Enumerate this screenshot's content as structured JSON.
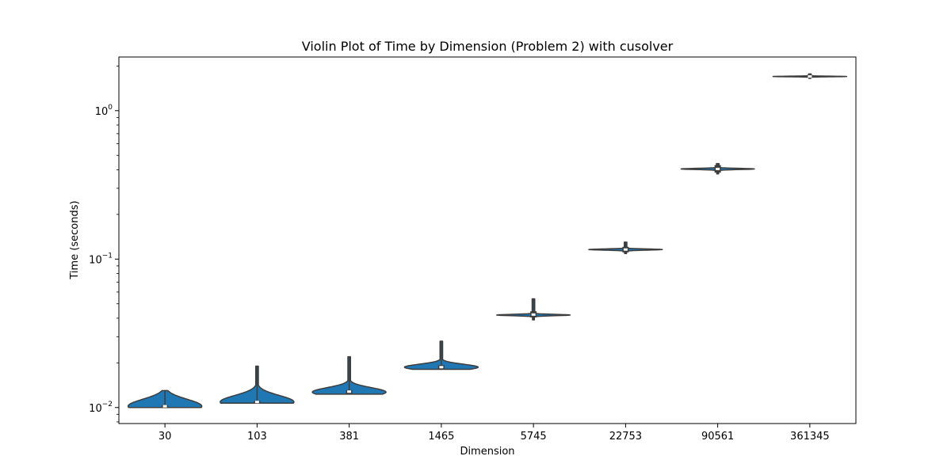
{
  "chart_data": {
    "type": "violin",
    "title": "Violin Plot of Time by Dimension (Problem 2) with cusolver",
    "xlabel": "Dimension",
    "ylabel": "Time (seconds)",
    "yscale": "log",
    "ylim": [
      0.0078,
      2.3
    ],
    "y_ticks": [
      {
        "value": 0.01,
        "base": "10",
        "exp": "−2"
      },
      {
        "value": 0.1,
        "base": "10",
        "exp": "−1"
      },
      {
        "value": 1,
        "base": "10",
        "exp": "0"
      }
    ],
    "categories": [
      "30",
      "103",
      "381",
      "1465",
      "5745",
      "22753",
      "90561",
      "361345"
    ],
    "violins": [
      {
        "median": 0.0102,
        "q1": 0.01,
        "q3": 0.0104,
        "min": 0.01,
        "max": 0.013,
        "mode": 0.0102,
        "spread": 0.047
      },
      {
        "median": 0.0109,
        "q1": 0.0107,
        "q3": 0.0111,
        "min": 0.0107,
        "max": 0.019,
        "mode": 0.0109,
        "spread": 0.044
      },
      {
        "median": 0.0128,
        "q1": 0.0124,
        "q3": 0.0131,
        "min": 0.0123,
        "max": 0.022,
        "mode": 0.0127,
        "spread": 0.03
      },
      {
        "median": 0.0187,
        "q1": 0.0182,
        "q3": 0.0193,
        "min": 0.0181,
        "max": 0.028,
        "mode": 0.0187,
        "spread": 0.02
      },
      {
        "median": 0.0423,
        "q1": 0.0405,
        "q3": 0.0445,
        "min": 0.039,
        "max": 0.054,
        "mode": 0.042,
        "spread": 0.0045
      },
      {
        "median": 0.116,
        "q1": 0.111,
        "q3": 0.121,
        "min": 0.109,
        "max": 0.13,
        "mode": 0.116,
        "spread": 0.004
      },
      {
        "median": 0.405,
        "q1": 0.383,
        "q3": 0.43,
        "min": 0.375,
        "max": 0.44,
        "mode": 0.405,
        "spread": 0.004
      },
      {
        "median": 1.7,
        "q1": 1.67,
        "q3": 1.74,
        "min": 1.65,
        "max": 1.77,
        "mode": 1.7,
        "spread": 0.002
      }
    ],
    "colors": {
      "violin_fill": "#1f77b4",
      "box": "#3d3d3d",
      "median": "#ffffff"
    }
  }
}
